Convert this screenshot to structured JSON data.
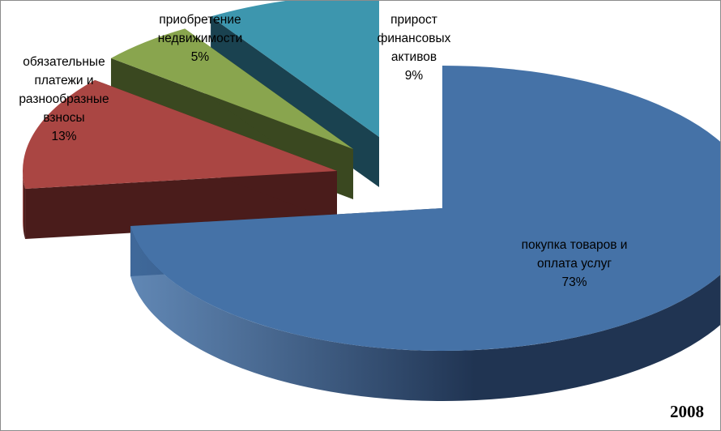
{
  "chart_data": {
    "type": "pie",
    "style": "3d-exploded",
    "categories": [
      "покупка товаров и оплата услуг",
      "обязательные платежи и разнообразные взносы",
      "приобретение недвижимости",
      "прирост финансовых активов"
    ],
    "values": [
      73,
      13,
      5,
      9
    ],
    "slices": [
      {
        "name": "покупка товаров и оплата услуг",
        "value": 73,
        "label_lines": [
          "покупка товаров и",
          "оплата услуг",
          "73%"
        ],
        "color": "#4572A7",
        "side_color": "#203452"
      },
      {
        "name": "обязательные платежи и разнообразные взносы",
        "value": 13,
        "label_lines": [
          "обязательные",
          "платежи и",
          "разнообразные",
          "взносы",
          "13%"
        ],
        "color": "#AA4643",
        "side_color": "#4A1C1B"
      },
      {
        "name": "приобретение недвижимости",
        "value": 5,
        "label_lines": [
          "приобретение",
          "недвижимости",
          "5%"
        ],
        "color": "#89A54E",
        "side_color": "#3A4820"
      },
      {
        "name": "прирост финансовых активов",
        "value": 9,
        "label_lines": [
          "прирост",
          "финансовых",
          "активов",
          "9%"
        ],
        "color": "#3D96AE",
        "side_color": "#1A4250"
      }
    ],
    "year_label": "2008",
    "legend": "none"
  }
}
